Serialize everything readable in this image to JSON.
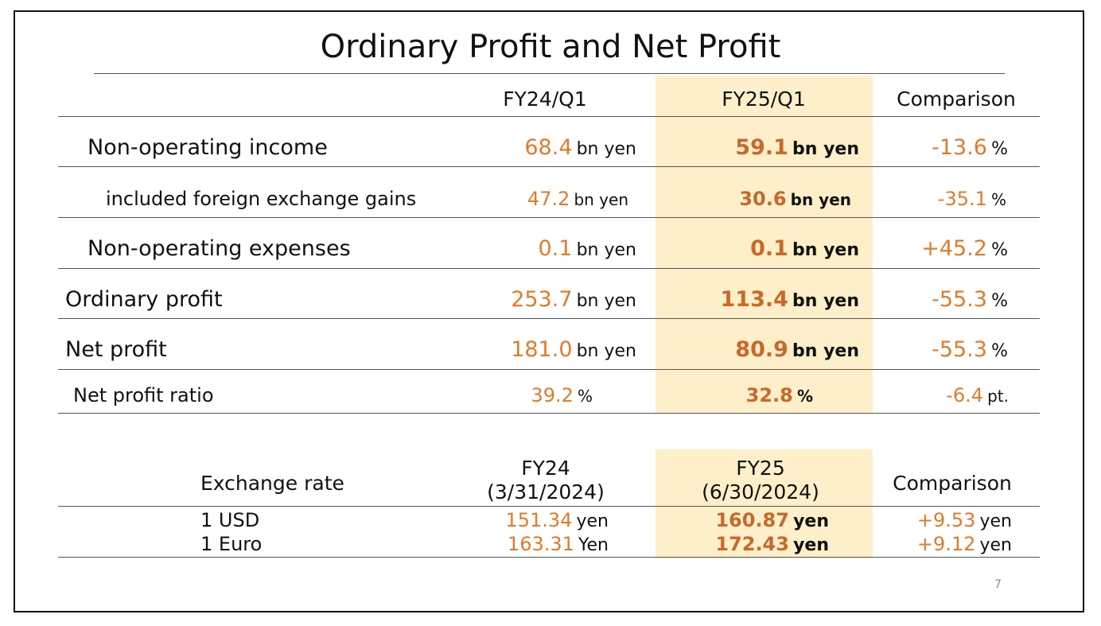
{
  "title": "Ordinary Profit and Net Profit",
  "profit_table": {
    "headers": {
      "prev": "FY24/Q1",
      "curr": "FY25/Q1",
      "comparison": "Comparison"
    },
    "rows": [
      {
        "label": "Non-operating income",
        "prev_value": "68.4",
        "prev_unit": "bn yen",
        "curr_value": "59.1",
        "curr_unit": "bn yen",
        "comp_value": "-13.6",
        "comp_unit": "%"
      },
      {
        "label": "included foreign exchange gains",
        "prev_value": "47.2",
        "prev_unit": "bn yen",
        "curr_value": "30.6",
        "curr_unit": "bn yen",
        "comp_value": "-35.1",
        "comp_unit": "%"
      },
      {
        "label": "Non-operating expenses",
        "prev_value": "0.1",
        "prev_unit": "bn yen",
        "curr_value": "0.1",
        "curr_unit": "bn yen",
        "comp_value": "+45.2",
        "comp_unit": "%"
      },
      {
        "label": "Ordinary profit",
        "prev_value": "253.7",
        "prev_unit": "bn yen",
        "curr_value": "113.4",
        "curr_unit": "bn yen",
        "comp_value": "-55.3",
        "comp_unit": "%"
      },
      {
        "label": "Net profit",
        "prev_value": "181.0",
        "prev_unit": "bn yen",
        "curr_value": "80.9",
        "curr_unit": "bn yen",
        "comp_value": "-55.3",
        "comp_unit": "%"
      },
      {
        "label": "Net profit ratio",
        "prev_value": "39.2",
        "prev_unit": "%",
        "curr_value": "32.8",
        "curr_unit": "%",
        "comp_value": "-6.4",
        "comp_unit": "pt."
      }
    ]
  },
  "exchange_table": {
    "label": "Exchange rate",
    "prev_header": [
      "FY24",
      "(3/31/2024)"
    ],
    "curr_header": [
      "FY25",
      "(6/30/2024)"
    ],
    "comparison": "Comparison",
    "rows": [
      {
        "label": "1 USD",
        "prev_value": "151.34",
        "prev_unit": "yen",
        "curr_value": "160.87",
        "curr_unit": "yen",
        "comp_value": "+9.53",
        "comp_unit": "yen"
      },
      {
        "label": "1 Euro",
        "prev_value": "163.31",
        "prev_unit": "Yen",
        "curr_value": "172.43",
        "curr_unit": "yen",
        "comp_value": "+9.12",
        "comp_unit": "yen"
      }
    ]
  },
  "page_number": "7",
  "colors": {
    "value_orange": "#e07b2a",
    "value_bold": "#c8692a",
    "highlight": "#fdefc9"
  }
}
